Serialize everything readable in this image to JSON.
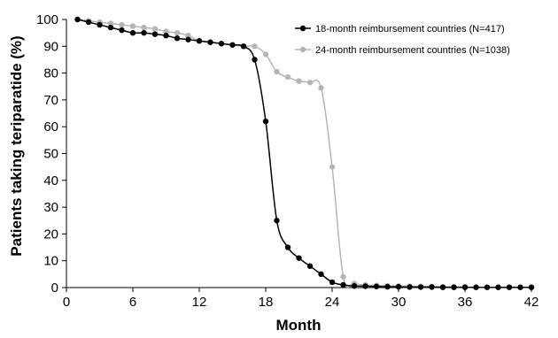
{
  "chart_data": {
    "type": "line",
    "title": "",
    "xlabel": "Month",
    "ylabel": "Patients taking teriparatide (%)",
    "xlim": [
      0,
      42
    ],
    "ylim": [
      0,
      100
    ],
    "x_ticks": [
      "0",
      "6",
      "12",
      "18",
      "24",
      "30",
      "36",
      "42"
    ],
    "y_ticks": [
      "0",
      "10",
      "20",
      "30",
      "40",
      "50",
      "60",
      "70",
      "80",
      "90",
      "100"
    ],
    "grid": false,
    "legend_position": "top-right",
    "series": [
      {
        "name": "18-month reimbursement countries (N=417)",
        "color": "#000000",
        "x": [
          1,
          2,
          3,
          4,
          5,
          6,
          7,
          8,
          9,
          10,
          11,
          12,
          13,
          14,
          15,
          16,
          17,
          18,
          19,
          20,
          21,
          22,
          23,
          24,
          25,
          26,
          27,
          28,
          29,
          30,
          31,
          32,
          33,
          34,
          35,
          36,
          37,
          38,
          39,
          40,
          41,
          42
        ],
        "y": [
          100,
          99,
          98,
          97,
          96,
          95,
          95,
          94.5,
          94,
          93,
          92.5,
          92,
          91.5,
          91,
          90.5,
          90,
          85,
          62,
          25,
          15,
          11,
          8,
          5,
          2,
          1,
          0.6,
          0.5,
          0.4,
          0.3,
          0.3,
          0.2,
          0.2,
          0.2,
          0.1,
          0.1,
          0.1,
          0.1,
          0.1,
          0.1,
          0.1,
          0.1,
          0.1
        ]
      },
      {
        "name": "24-month reimbursement countries (N=1038)",
        "color": "#b5b5b5",
        "x": [
          1,
          2,
          3,
          4,
          5,
          6,
          7,
          8,
          9,
          10,
          11,
          12,
          13,
          14,
          15,
          16,
          17,
          18,
          19,
          20,
          21,
          22,
          23,
          24,
          25,
          26,
          27,
          28,
          29,
          30,
          31,
          32,
          33,
          34,
          35,
          36
        ],
        "y": [
          100,
          99.5,
          99,
          98.5,
          98,
          97.5,
          97,
          96.5,
          95.5,
          95,
          94,
          92,
          91.5,
          91,
          90.5,
          90,
          90,
          87,
          80.5,
          78.5,
          77,
          76.5,
          74.5,
          45,
          4,
          1.5,
          1,
          0.8,
          0.7,
          0.6,
          0.5,
          0.4,
          0.4,
          0.3,
          0.3,
          0.3
        ]
      }
    ]
  }
}
